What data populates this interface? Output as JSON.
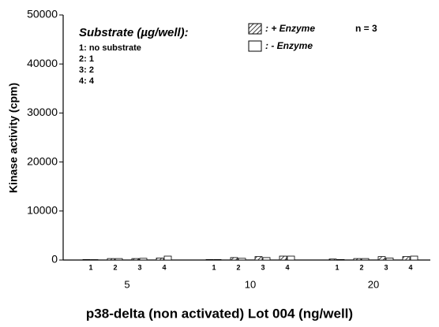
{
  "chart_data": {
    "type": "grouped-bar",
    "title_x": "p38-delta (non activated) Lot 004  (ng/well)",
    "title_y": "Kinase activity  (cpm)",
    "groups": [
      "5",
      "10",
      "20"
    ],
    "subcategories": [
      "1",
      "2",
      "3",
      "4"
    ],
    "series": [
      {
        "name": ": + Enzyme",
        "color": "#000000",
        "hatched": true,
        "values": [
          100,
          300,
          300,
          400,
          100,
          500,
          700,
          800,
          200,
          300,
          700,
          700
        ]
      },
      {
        "name": ": - Enzyme",
        "color": "#ffffff",
        "hatched": false,
        "values": [
          80,
          300,
          350,
          800,
          100,
          350,
          500,
          800,
          100,
          300,
          400,
          800
        ]
      }
    ],
    "ylim": [
      0,
      50000
    ],
    "yticks": [
      0,
      10000,
      20000,
      30000,
      40000,
      50000
    ],
    "substrate_legend": {
      "title": "Substrate (µg/well):",
      "items": [
        "1: no substrate",
        "2: 1",
        "3: 2",
        "4: 4"
      ]
    },
    "note": "n = 3"
  }
}
